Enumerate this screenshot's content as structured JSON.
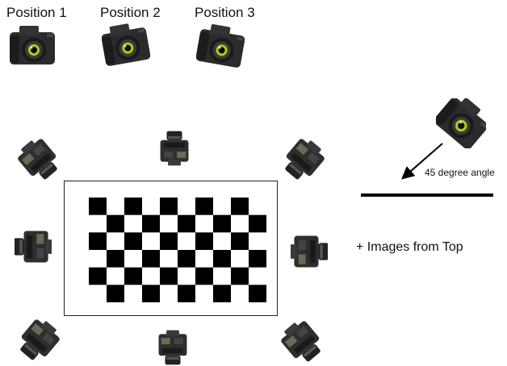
{
  "positions": [
    {
      "label": "Position 1",
      "icon": "camera-front-icon"
    },
    {
      "label": "Position 2",
      "icon": "camera-rotated-left-icon"
    },
    {
      "label": "Position 3",
      "icon": "camera-rotated-right-icon"
    }
  ],
  "checkerboard": {
    "rows": 6,
    "cols": 10,
    "dark_color": "#000000",
    "light_color": "#ffffff"
  },
  "angle_label": "45 degree angle",
  "top_images_note": "+ Images from Top",
  "colors": {
    "text": "#111111",
    "camera_body": "#2b2b2b",
    "lens_accent": "#b8c61a",
    "line": "#000000"
  }
}
